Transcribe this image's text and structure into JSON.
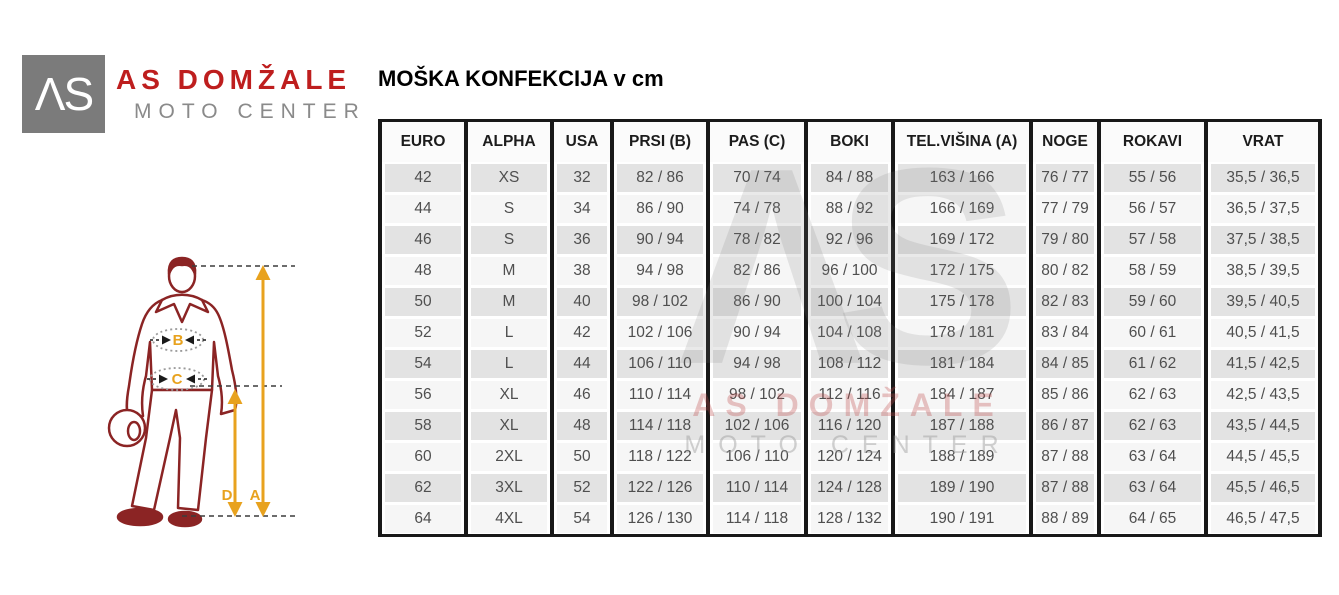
{
  "brand": {
    "logo_text": "ΛS",
    "name": "AS DOMŽALE",
    "subtitle": "MOTO CENTER"
  },
  "title": "MOŠKA KONFEKCIJA v cm",
  "watermark": {
    "logo_text": "ΛS",
    "line1": "AS DOMŽALE",
    "line2": "MOTO CENTER"
  },
  "figure": {
    "chest_label": "B",
    "waist_label": "C",
    "inseam_label": "D",
    "height_label": "A"
  },
  "colors": {
    "brand_red": "#be1e1e",
    "figure_red": "#8b2424",
    "accent_orange": "#e8a21e",
    "logo_gray": "#7b7b7b",
    "stripe_gray": "#e3e3e3",
    "border_black": "#181818"
  },
  "table": {
    "headers": [
      "EURO",
      "ALPHA",
      "USA",
      "PRSI (B)",
      "PAS (C)",
      "BOKI",
      "TEL.VIŠINA (A)",
      "NOGE",
      "ROKAVI",
      "VRAT"
    ],
    "rows": [
      [
        "42",
        "XS",
        "32",
        "82 / 86",
        "70 / 74",
        "84 / 88",
        "163 / 166",
        "76 / 77",
        "55 / 56",
        "35,5 / 36,5"
      ],
      [
        "44",
        "S",
        "34",
        "86 / 90",
        "74 / 78",
        "88 / 92",
        "166 / 169",
        "77 / 79",
        "56 / 57",
        "36,5 / 37,5"
      ],
      [
        "46",
        "S",
        "36",
        "90 / 94",
        "78 / 82",
        "92 / 96",
        "169 / 172",
        "79 / 80",
        "57 / 58",
        "37,5 / 38,5"
      ],
      [
        "48",
        "M",
        "38",
        "94 / 98",
        "82 / 86",
        "96 / 100",
        "172 / 175",
        "80 / 82",
        "58 / 59",
        "38,5 / 39,5"
      ],
      [
        "50",
        "M",
        "40",
        "98 / 102",
        "86 / 90",
        "100 / 104",
        "175 / 178",
        "82 / 83",
        "59 / 60",
        "39,5 / 40,5"
      ],
      [
        "52",
        "L",
        "42",
        "102 / 106",
        "90 / 94",
        "104 / 108",
        "178 / 181",
        "83 / 84",
        "60 / 61",
        "40,5 / 41,5"
      ],
      [
        "54",
        "L",
        "44",
        "106 / 110",
        "94 / 98",
        "108 / 112",
        "181 / 184",
        "84 / 85",
        "61 / 62",
        "41,5 / 42,5"
      ],
      [
        "56",
        "XL",
        "46",
        "110 / 114",
        "98 / 102",
        "112 / 116",
        "184 / 187",
        "85 / 86",
        "62 / 63",
        "42,5 / 43,5"
      ],
      [
        "58",
        "XL",
        "48",
        "114 / 118",
        "102 / 106",
        "116 / 120",
        "187 / 188",
        "86 / 87",
        "62 / 63",
        "43,5 / 44,5"
      ],
      [
        "60",
        "2XL",
        "50",
        "118 / 122",
        "106 / 110",
        "120 / 124",
        "188 / 189",
        "87 / 88",
        "63 / 64",
        "44,5 / 45,5"
      ],
      [
        "62",
        "3XL",
        "52",
        "122 / 126",
        "110 / 114",
        "124 / 128",
        "189 / 190",
        "87 / 88",
        "63 / 64",
        "45,5 / 46,5"
      ],
      [
        "64",
        "4XL",
        "54",
        "126 / 130",
        "114 / 118",
        "128 / 132",
        "190 / 191",
        "88 / 89",
        "64 / 65",
        "46,5 / 47,5"
      ]
    ]
  }
}
